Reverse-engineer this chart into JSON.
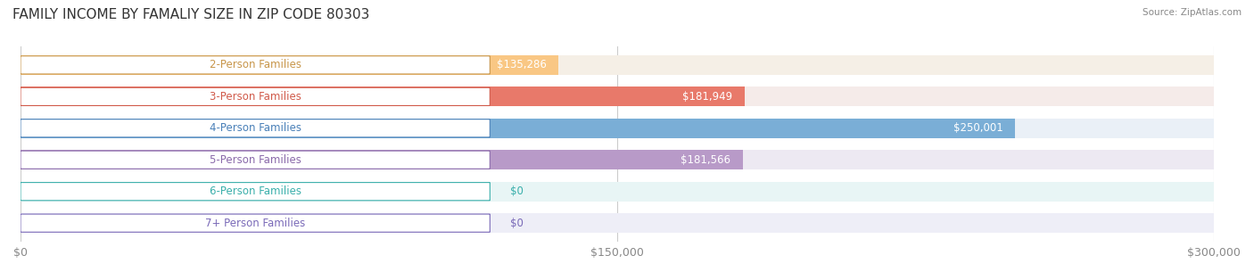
{
  "title": "FAMILY INCOME BY FAMALIY SIZE IN ZIP CODE 80303",
  "source": "Source: ZipAtlas.com",
  "categories": [
    "2-Person Families",
    "3-Person Families",
    "4-Person Families",
    "5-Person Families",
    "6-Person Families",
    "7+ Person Families"
  ],
  "values": [
    135286,
    181949,
    250001,
    181566,
    0,
    0
  ],
  "bar_colors": [
    "#f9c784",
    "#e8796a",
    "#7aaed6",
    "#b89ac8",
    "#6ecfcb",
    "#b0aad8"
  ],
  "bar_bg_colors": [
    "#f5efe6",
    "#f5ebe9",
    "#eaf0f7",
    "#ede9f2",
    "#e8f5f5",
    "#eeeef7"
  ],
  "label_colors": [
    "#c8964a",
    "#d05a4a",
    "#4a80b8",
    "#8a6aaa",
    "#3aafab",
    "#7a6ab8"
  ],
  "value_color": "#ffffff",
  "xlim": [
    0,
    300000
  ],
  "xticks": [
    0,
    150000,
    300000
  ],
  "xtick_labels": [
    "$0",
    "$150,000",
    "$300,000"
  ],
  "bar_height": 0.62,
  "background_color": "#ffffff",
  "title_fontsize": 11,
  "label_fontsize": 8.5,
  "value_fontsize": 8.5,
  "tick_fontsize": 9
}
